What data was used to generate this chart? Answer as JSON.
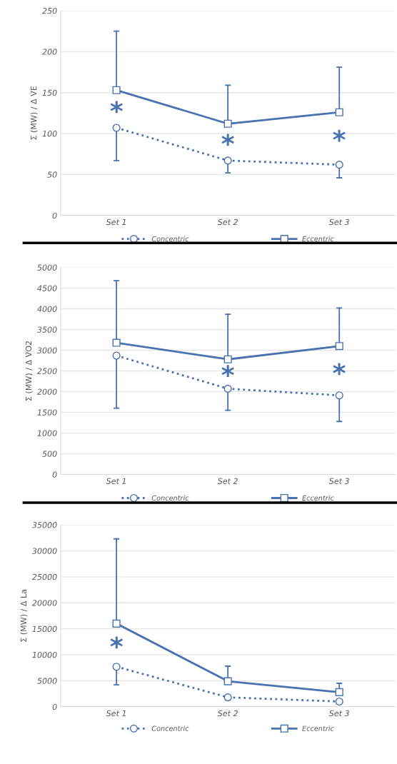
{
  "chart_data": [
    {
      "type": "line",
      "ylabel": "Σ (MW) / Δ V̇E",
      "categories": [
        "Set 1",
        "Set 2",
        "Set 3"
      ],
      "ylim": [
        0,
        250
      ],
      "yticks": [
        0,
        50,
        100,
        150,
        200,
        250
      ],
      "grid": "y",
      "legend": "bottom",
      "series": [
        {
          "name": "Concentric",
          "color": "#4a72b0",
          "values": [
            107,
            67,
            62
          ],
          "marker": "circle",
          "line_style": "dotted",
          "errors": [
            [
              67,
              107
            ],
            [
              52,
              67
            ],
            [
              46,
              62
            ]
          ]
        },
        {
          "name": "Eccentric",
          "color": "#4a72b0",
          "values": [
            153,
            112,
            126
          ],
          "marker": "square",
          "line_style": "solid",
          "errors": [
            [
              153,
              225
            ],
            [
              112,
              159
            ],
            [
              126,
              181
            ]
          ]
        }
      ],
      "annotations": [
        "*",
        "*",
        "*"
      ]
    },
    {
      "type": "line",
      "ylabel": "Σ (MW) / Δ V̇O2",
      "categories": [
        "Set 1",
        "Set 2",
        "Set 3"
      ],
      "ylim": [
        0,
        5000
      ],
      "yticks": [
        0,
        500,
        1000,
        1500,
        2000,
        2500,
        3000,
        3500,
        4000,
        4500,
        5000
      ],
      "grid": "y",
      "legend": "bottom",
      "series": [
        {
          "name": "Concentric",
          "color": "#4a72b0",
          "values": [
            2870,
            2070,
            1910
          ],
          "marker": "circle",
          "line_style": "dotted",
          "errors": [
            [
              1600,
              2870
            ],
            [
              1550,
              2070
            ],
            [
              1280,
              1910
            ]
          ]
        },
        {
          "name": "Eccentric",
          "color": "#4a72b0",
          "values": [
            3180,
            2780,
            3100
          ],
          "marker": "square",
          "line_style": "solid",
          "errors": [
            [
              3180,
              4680
            ],
            [
              2780,
              3870
            ],
            [
              3100,
              4020
            ]
          ]
        }
      ],
      "annotations": [
        "*",
        "*"
      ]
    },
    {
      "type": "line",
      "ylabel": "Σ (MW) / Δ La",
      "categories": [
        "Set 1",
        "Set 2",
        "Set 3"
      ],
      "ylim": [
        0,
        35000
      ],
      "yticks": [
        0,
        5000,
        10000,
        15000,
        20000,
        25000,
        30000,
        35000
      ],
      "grid": "y",
      "legend": "bottom",
      "series": [
        {
          "name": "Concentric",
          "color": "#4a72b0",
          "values": [
            7700,
            1800,
            1000
          ],
          "marker": "circle",
          "line_style": "dotted",
          "errors": [
            [
              4200,
              7700
            ],
            [
              1300,
              1800
            ],
            null
          ]
        },
        {
          "name": "Eccentric",
          "color": "#4a72b0",
          "values": [
            16000,
            4900,
            2800
          ],
          "marker": "square",
          "line_style": "solid",
          "errors": [
            [
              16000,
              32300
            ],
            [
              4900,
              7800
            ],
            [
              2800,
              4500
            ]
          ]
        }
      ],
      "annotations": [
        "*"
      ]
    }
  ]
}
